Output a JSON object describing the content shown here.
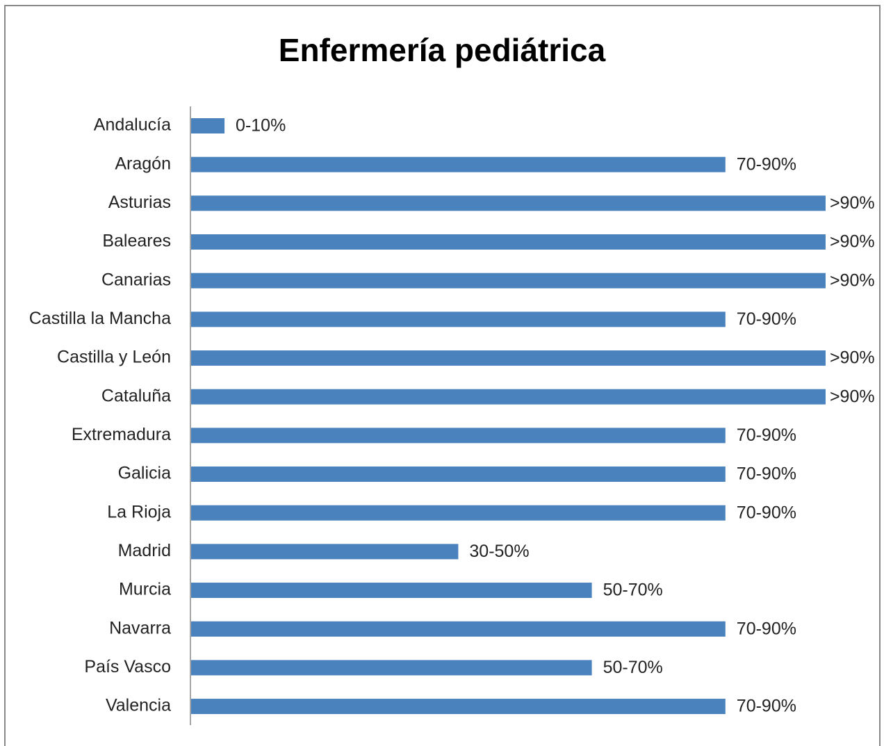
{
  "chart_data": {
    "type": "bar",
    "orientation": "horizontal",
    "title": "Enfermería pediátrica",
    "categories": [
      "Andalucía",
      "Aragón",
      "Asturias",
      "Baleares",
      "Canarias",
      "Castilla la Mancha",
      "Castilla y León",
      "Cataluña",
      "Extremadura",
      "Galicia",
      "La Rioja",
      "Madrid",
      "Murcia",
      "Navarra",
      "País Vasco",
      "Valencia"
    ],
    "values": [
      5,
      80,
      95,
      95,
      95,
      80,
      95,
      95,
      80,
      80,
      80,
      40,
      60,
      80,
      60,
      80
    ],
    "value_labels": [
      "0-10%",
      "70-90%",
      ">90%",
      ">90%",
      ">90%",
      "70-90%",
      ">90%",
      ">90%",
      "70-90%",
      "70-90%",
      "70-90%",
      "30-50%",
      "50-70%",
      "70-90%",
      "50-70%",
      "70-90%"
    ],
    "color": "#4a82bd",
    "xlim": [
      0,
      100
    ]
  }
}
